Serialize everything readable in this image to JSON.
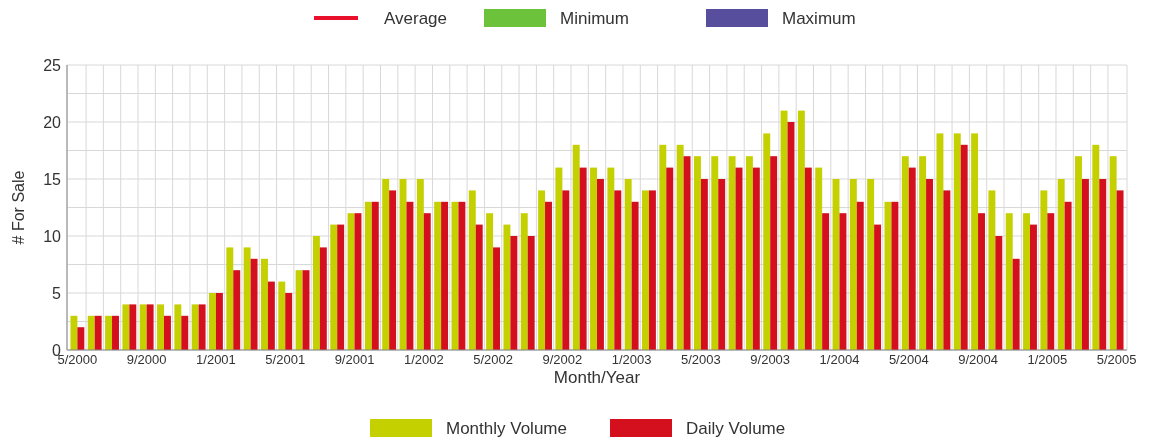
{
  "chart_data": {
    "type": "bar",
    "xlabel": "Month/Year",
    "ylabel": "# For Sale",
    "categories": [
      "5/2000",
      null,
      null,
      null,
      "9/2000",
      null,
      null,
      null,
      "1/2001",
      null,
      null,
      null,
      "5/2001",
      null,
      null,
      null,
      "9/2001",
      null,
      null,
      null,
      "1/2002",
      null,
      null,
      null,
      "5/2002",
      null,
      null,
      null,
      "9/2002",
      null,
      null,
      null,
      "1/2003",
      null,
      null,
      null,
      "5/2003",
      null,
      null,
      null,
      "9/2003",
      null,
      null,
      null,
      "1/2004",
      null,
      null,
      null,
      "5/2004",
      null,
      null,
      null,
      "9/2004",
      null,
      null,
      null,
      "1/2005",
      null,
      null,
      null,
      "5/2005"
    ],
    "series": [
      {
        "name": "Average",
        "type": "line",
        "color": "#e8102a",
        "values": [
          null,
          null,
          null,
          null,
          null,
          null,
          null,
          null,
          null,
          null,
          null,
          null,
          null,
          null,
          null,
          null,
          null,
          null,
          null,
          null,
          null,
          null,
          null,
          null,
          null,
          null,
          null,
          null,
          null,
          null,
          null,
          null,
          null,
          null,
          null,
          null,
          null,
          null,
          null,
          null,
          null,
          null,
          null,
          null,
          null,
          null,
          null,
          null,
          null,
          null,
          null,
          null,
          null,
          null,
          null,
          null,
          null,
          null,
          null,
          null,
          null
        ]
      },
      {
        "name": "Minimum",
        "color": "#6cc23a",
        "values": [
          null,
          null,
          null,
          null,
          null,
          null,
          null,
          null,
          null,
          null,
          null,
          null,
          null,
          null,
          null,
          null,
          null,
          null,
          null,
          null,
          null,
          null,
          null,
          null,
          null,
          null,
          null,
          null,
          null,
          null,
          null,
          null,
          null,
          null,
          null,
          null,
          null,
          null,
          null,
          null,
          null,
          null,
          null,
          null,
          null,
          null,
          null,
          null,
          null,
          null,
          null,
          null,
          null,
          null,
          null,
          null,
          null,
          null,
          null,
          null,
          null
        ]
      },
      {
        "name": "Maximum",
        "color": "#574f9e",
        "values": [
          null,
          null,
          null,
          null,
          null,
          null,
          null,
          null,
          null,
          null,
          null,
          null,
          null,
          null,
          null,
          null,
          null,
          null,
          null,
          null,
          null,
          null,
          null,
          null,
          null,
          null,
          null,
          null,
          null,
          null,
          null,
          null,
          null,
          null,
          null,
          null,
          null,
          null,
          null,
          null,
          null,
          null,
          null,
          null,
          null,
          null,
          null,
          null,
          null,
          null,
          null,
          null,
          null,
          null,
          null,
          null,
          null,
          null,
          null,
          null,
          null
        ]
      },
      {
        "name": "Monthly Volume",
        "color": "#c4d000",
        "values": [
          3,
          3,
          3,
          4,
          4,
          4,
          4,
          4,
          5,
          9,
          9,
          8,
          6,
          7,
          10,
          11,
          12,
          13,
          15,
          15,
          15,
          13,
          13,
          14,
          12,
          11,
          12,
          14,
          16,
          18,
          16,
          16,
          15,
          14,
          18,
          18,
          17,
          17,
          17,
          17,
          19,
          21,
          21,
          16,
          15,
          15,
          15,
          13,
          17,
          17,
          19,
          19,
          19,
          14,
          12,
          12,
          14,
          15,
          17,
          18,
          17
        ]
      },
      {
        "name": "Daily Volume",
        "color": "#d40f1e",
        "values": [
          2,
          3,
          3,
          4,
          4,
          3,
          3,
          4,
          5,
          7,
          8,
          6,
          5,
          7,
          9,
          11,
          12,
          13,
          14,
          13,
          12,
          13,
          13,
          11,
          9,
          10,
          10,
          13,
          14,
          16,
          15,
          14,
          13,
          14,
          16,
          17,
          15,
          15,
          16,
          16,
          17,
          20,
          16,
          12,
          12,
          13,
          11,
          13,
          16,
          15,
          14,
          18,
          12,
          10,
          8,
          11,
          12,
          13,
          15,
          15,
          14
        ]
      }
    ],
    "ylim": [
      0,
      25
    ],
    "yticks": [
      0,
      {
        "value": 2.5,
        "label": null
      },
      5,
      {
        "value": 7.5,
        "label": null
      },
      10,
      {
        "value": 12.5,
        "label": null
      },
      15,
      {
        "value": 17.5,
        "label": null
      },
      20,
      {
        "value": 22.5,
        "label": null
      },
      25
    ],
    "grid": true,
    "legend": "bottom"
  }
}
